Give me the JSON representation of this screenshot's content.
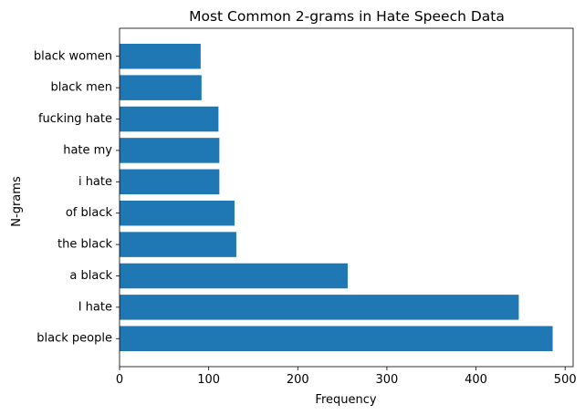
{
  "chart_data": {
    "type": "bar",
    "orientation": "horizontal",
    "title": "Most Common 2-grams in Hate Speech Data",
    "xlabel": "Frequency",
    "ylabel": "N-grams",
    "categories": [
      "black people",
      "I hate",
      "a black",
      "the black",
      "of black",
      "i hate",
      "hate my",
      "fucking hate",
      "black men",
      "black women"
    ],
    "values": [
      486,
      448,
      256,
      131,
      129,
      112,
      112,
      111,
      92,
      91
    ],
    "xlim": [
      0,
      509
    ],
    "xticks": [
      0,
      100,
      200,
      300,
      400,
      500
    ],
    "grid": false,
    "bar_color": "#1f77b4"
  }
}
